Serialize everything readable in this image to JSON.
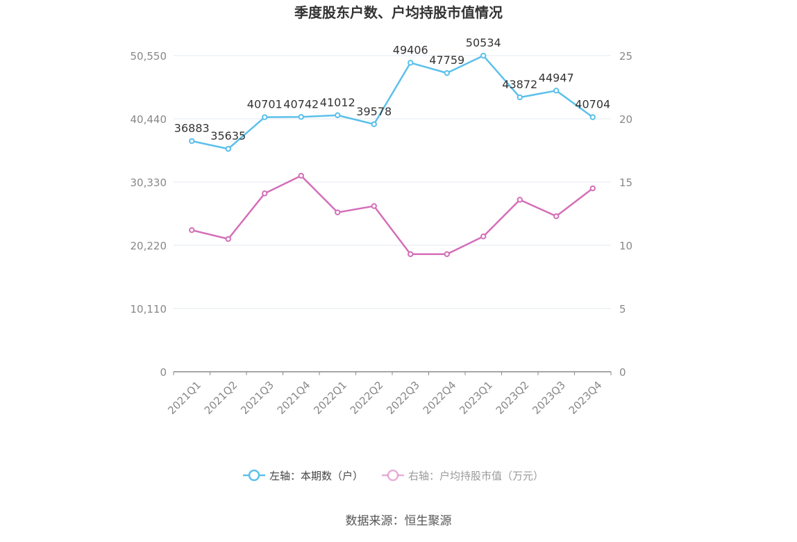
{
  "chart_data": {
    "type": "line",
    "title": "季度股东户数、户均持股市值情况",
    "categories": [
      "2021Q1",
      "2021Q2",
      "2021Q3",
      "2021Q4",
      "2022Q1",
      "2022Q2",
      "2022Q3",
      "2022Q4",
      "2023Q1",
      "2023Q2",
      "2023Q3",
      "2023Q4"
    ],
    "left_axis": {
      "ylim": [
        0,
        50550
      ],
      "ticks": [
        "0",
        "10,110",
        "20,220",
        "30,330",
        "40,440",
        "50,550"
      ],
      "tick_values": [
        0,
        10110,
        20220,
        30330,
        40440,
        50550
      ]
    },
    "right_axis": {
      "ylim": [
        0,
        25
      ],
      "ticks": [
        "0",
        "5",
        "10",
        "15",
        "20",
        "25"
      ],
      "tick_values": [
        0,
        5,
        10,
        15,
        20,
        25
      ]
    },
    "series": [
      {
        "name": "左轴：本期数（户）",
        "axis": "left",
        "color": "#5bc0eb",
        "values": [
          36883,
          35635,
          40701,
          40742,
          41012,
          39578,
          49406,
          47759,
          50534,
          43872,
          44947,
          40704
        ],
        "labels": [
          "36883",
          "35635",
          "40701",
          "40742",
          "41012",
          "39578",
          "49406",
          "47759",
          "50534",
          "43872",
          "44947",
          "40704"
        ]
      },
      {
        "name": "右轴：户均持股市值（万元）",
        "axis": "right",
        "color": "#d46eb8",
        "values": [
          11.2,
          10.5,
          14.1,
          15.5,
          12.6,
          13.1,
          9.3,
          9.3,
          10.7,
          13.6,
          12.3,
          14.5
        ]
      }
    ],
    "grid": true,
    "legend_position": "bottom"
  },
  "source": "数据来源：恒生聚源"
}
